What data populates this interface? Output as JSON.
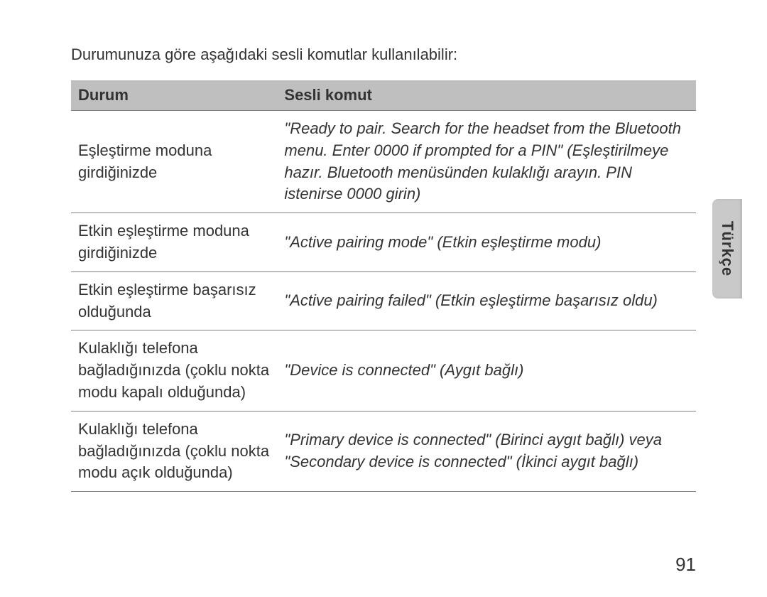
{
  "intro": "Durumunuza göre aşağıdaki sesli komutlar kullanılabilir:",
  "table": {
    "headers": {
      "state": "Durum",
      "command": "Sesli komut"
    },
    "rows": [
      {
        "state": "Eşleştirme moduna girdiğinizde",
        "command": "\"Ready to pair. Search for the headset from the Bluetooth menu. Enter 0000 if prompted for a PIN\" (Eşleştirilmeye hazır. Bluetooth menüsünden kulaklığı arayın. PIN istenirse 0000 girin)"
      },
      {
        "state": "Etkin eşleştirme moduna girdiğinizde",
        "command": "\"Active pairing mode\" (Etkin eşleştirme modu)"
      },
      {
        "state": "Etkin eşleştirme başarısız olduğunda",
        "command": "\"Active pairing failed\" (Etkin eşleştirme başarısız oldu)"
      },
      {
        "state": "Kulaklığı telefona bağladığınızda (çoklu nokta modu kapalı olduğunda)",
        "command": "\"Device is connected\" (Aygıt bağlı)"
      },
      {
        "state": "Kulaklığı telefona bağladığınızda (çoklu nokta modu açık olduğunda)",
        "command": "\"Primary device is connected\" (Birinci aygıt bağlı) veya \"Secondary device is connected\" (İkinci aygıt bağlı)"
      }
    ]
  },
  "side_tab": "Türkçe",
  "page_number": "91",
  "colors": {
    "header_bg": "#bfbfbf",
    "border": "#808080",
    "tab_bg": "#c9c9c9",
    "text": "#333333",
    "background": "#ffffff"
  },
  "font_sizes": {
    "body": 22,
    "page_num": 26,
    "tab": 22
  }
}
